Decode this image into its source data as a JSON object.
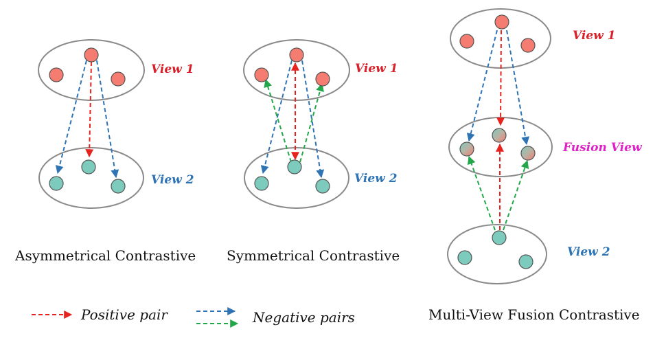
{
  "colors": {
    "red": "#e8221f",
    "blue": "#2e74b5",
    "green": "#22a84a",
    "view1_label": "#d9202a",
    "view2_label": "#2e74b5",
    "fusion_label": "#e020c8",
    "red_node": "#f47c70",
    "teal_node": "#7dcbbd"
  },
  "panels": {
    "asymmetrical": {
      "caption": "Asymmetrical Contrastive",
      "view1_label": "View 1",
      "view2_label": "View 2"
    },
    "symmetrical": {
      "caption": "Symmetrical Contrastive",
      "view1_label": "View 1",
      "view2_label": "View 2"
    },
    "fusion": {
      "caption": "Multi-View Fusion Contrastive",
      "view1_label": "View 1",
      "fusion_label": "Fusion View",
      "view2_label": "View 2"
    }
  },
  "legend": {
    "positive_label": "Positive pair",
    "negative_label": "Negative pairs"
  }
}
